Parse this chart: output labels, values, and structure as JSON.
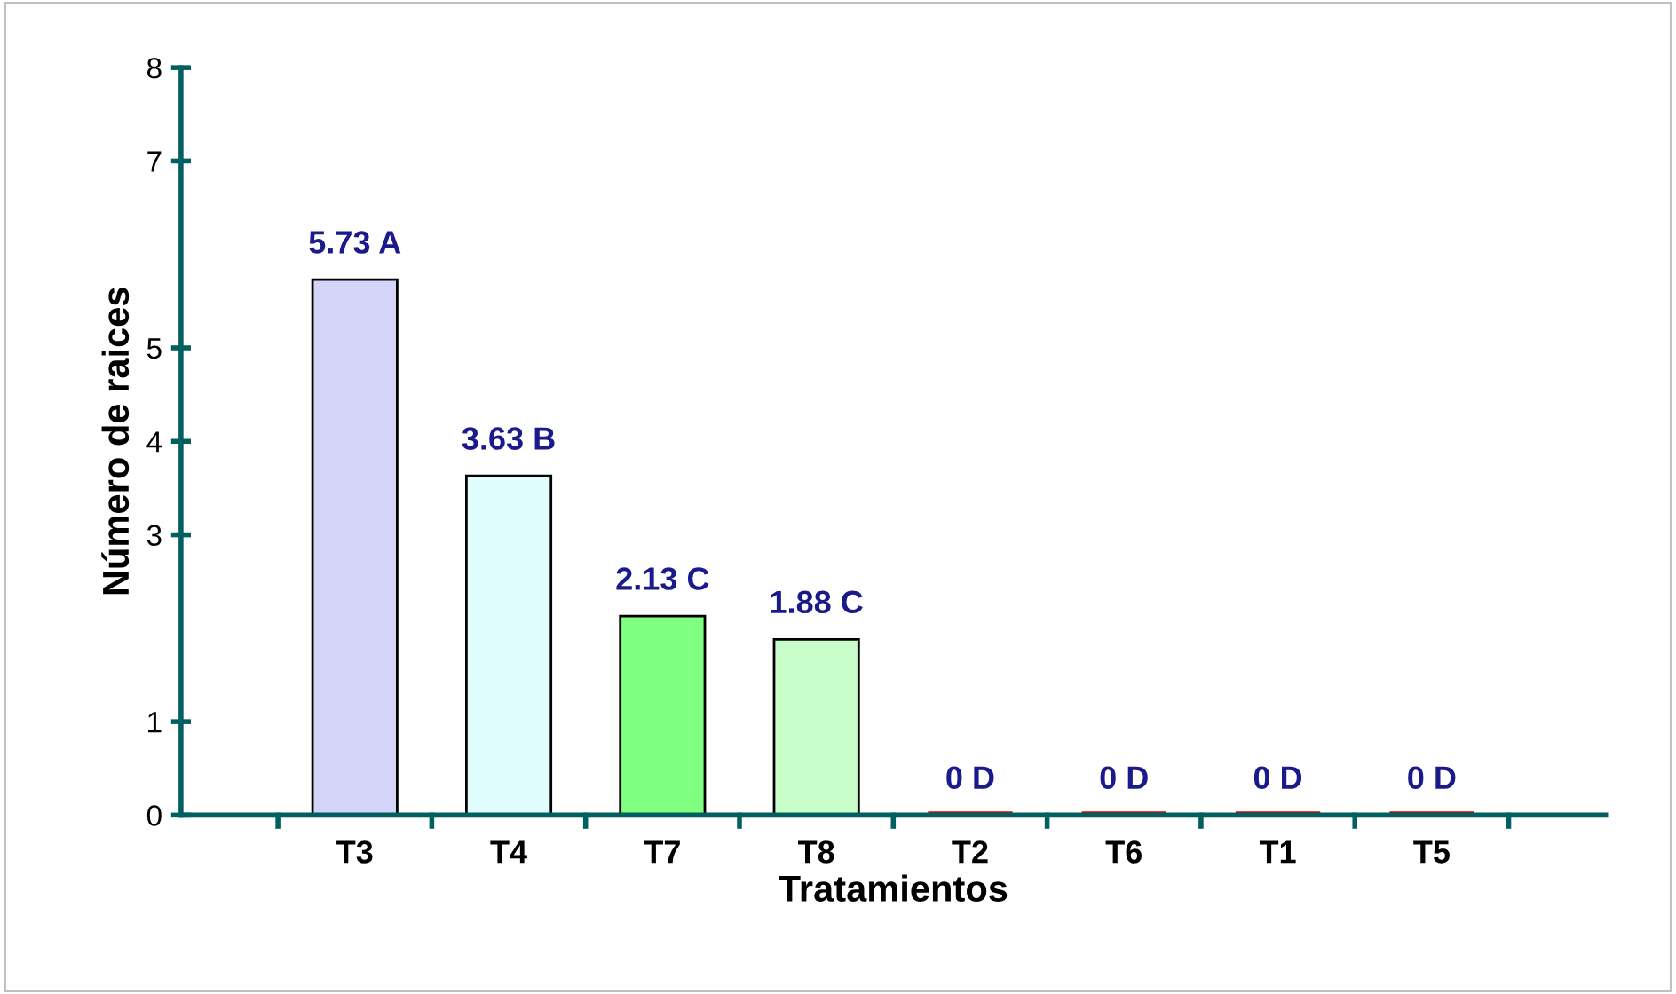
{
  "chart_data": {
    "type": "bar",
    "xlabel": "Tratamientos",
    "ylabel": "Número de raices",
    "categories": [
      "T3",
      "T4",
      "T7",
      "T8",
      "T2",
      "T6",
      "T1",
      "T5"
    ],
    "values": [
      5.73,
      3.63,
      2.13,
      1.88,
      0,
      0,
      0,
      0
    ],
    "colors": [
      "#d4d4f8",
      "#e0fcfc",
      "#80ff80",
      "#c8fcc8",
      "#e00000",
      "#e00000",
      "#e00000",
      "#e00000"
    ],
    "value_labels": [
      "5.73 A",
      "3.63 B",
      "2.13 C",
      "1.88 C",
      "0 D",
      "0 D",
      "0 D",
      "0 D"
    ],
    "ylim": [
      0,
      8
    ],
    "yticks": [
      0,
      1,
      3,
      4,
      5,
      7,
      8
    ],
    "grid": false,
    "legend": false
  }
}
